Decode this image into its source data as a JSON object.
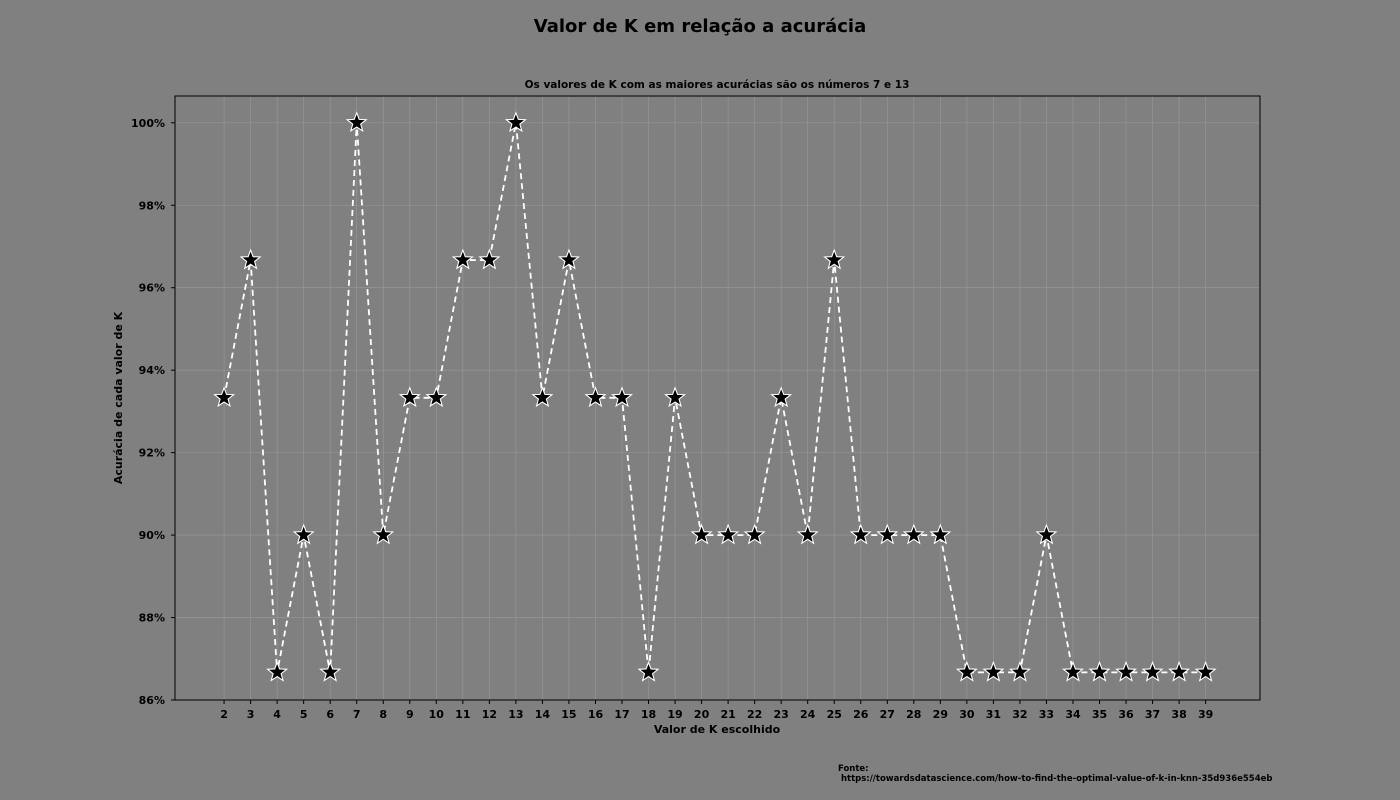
{
  "chart_data": {
    "type": "line",
    "title": "Valor de K em relação a acurácia",
    "subtitle": "Os valores de K com as maiores acurácias são os números 7 e 13",
    "xlabel": "Valor de K escolhido",
    "ylabel": "Acurácia de cada valor de K",
    "x": [
      2,
      3,
      4,
      5,
      6,
      7,
      8,
      9,
      10,
      11,
      12,
      13,
      14,
      15,
      16,
      17,
      18,
      19,
      20,
      21,
      22,
      23,
      24,
      25,
      26,
      27,
      28,
      29,
      30,
      31,
      32,
      33,
      34,
      35,
      36,
      37,
      38,
      39
    ],
    "y": [
      93.33,
      96.67,
      86.67,
      90.0,
      86.67,
      100.0,
      90.0,
      93.33,
      93.33,
      96.67,
      96.67,
      100.0,
      93.33,
      96.67,
      93.33,
      93.33,
      86.67,
      93.33,
      90.0,
      90.0,
      90.0,
      93.33,
      90.0,
      96.67,
      90.0,
      90.0,
      90.0,
      90.0,
      86.67,
      86.67,
      86.67,
      90.0,
      86.67,
      86.67,
      86.67,
      86.67,
      86.67,
      86.67
    ],
    "xlim": [
      0.15,
      41.05
    ],
    "ylim": [
      86.0,
      100.65
    ],
    "yticks": [
      86,
      88,
      90,
      92,
      94,
      96,
      98,
      100
    ],
    "ytick_labels": [
      "86%",
      "88%",
      "90%",
      "92%",
      "94%",
      "96%",
      "98%",
      "100%"
    ],
    "line_style": "dashed",
    "marker": "star",
    "grid": true,
    "colors": {
      "background": "#808080",
      "line": "#ffffff",
      "marker_fill": "#000000",
      "marker_edge": "#ffffff",
      "grid": "#999999",
      "text": "#000000"
    }
  },
  "source": {
    "label": "Fonte:",
    "url": "https://towardsdatascience.com/how-to-find-the-optimal-value-of-k-in-knn-35d936e554eb"
  }
}
